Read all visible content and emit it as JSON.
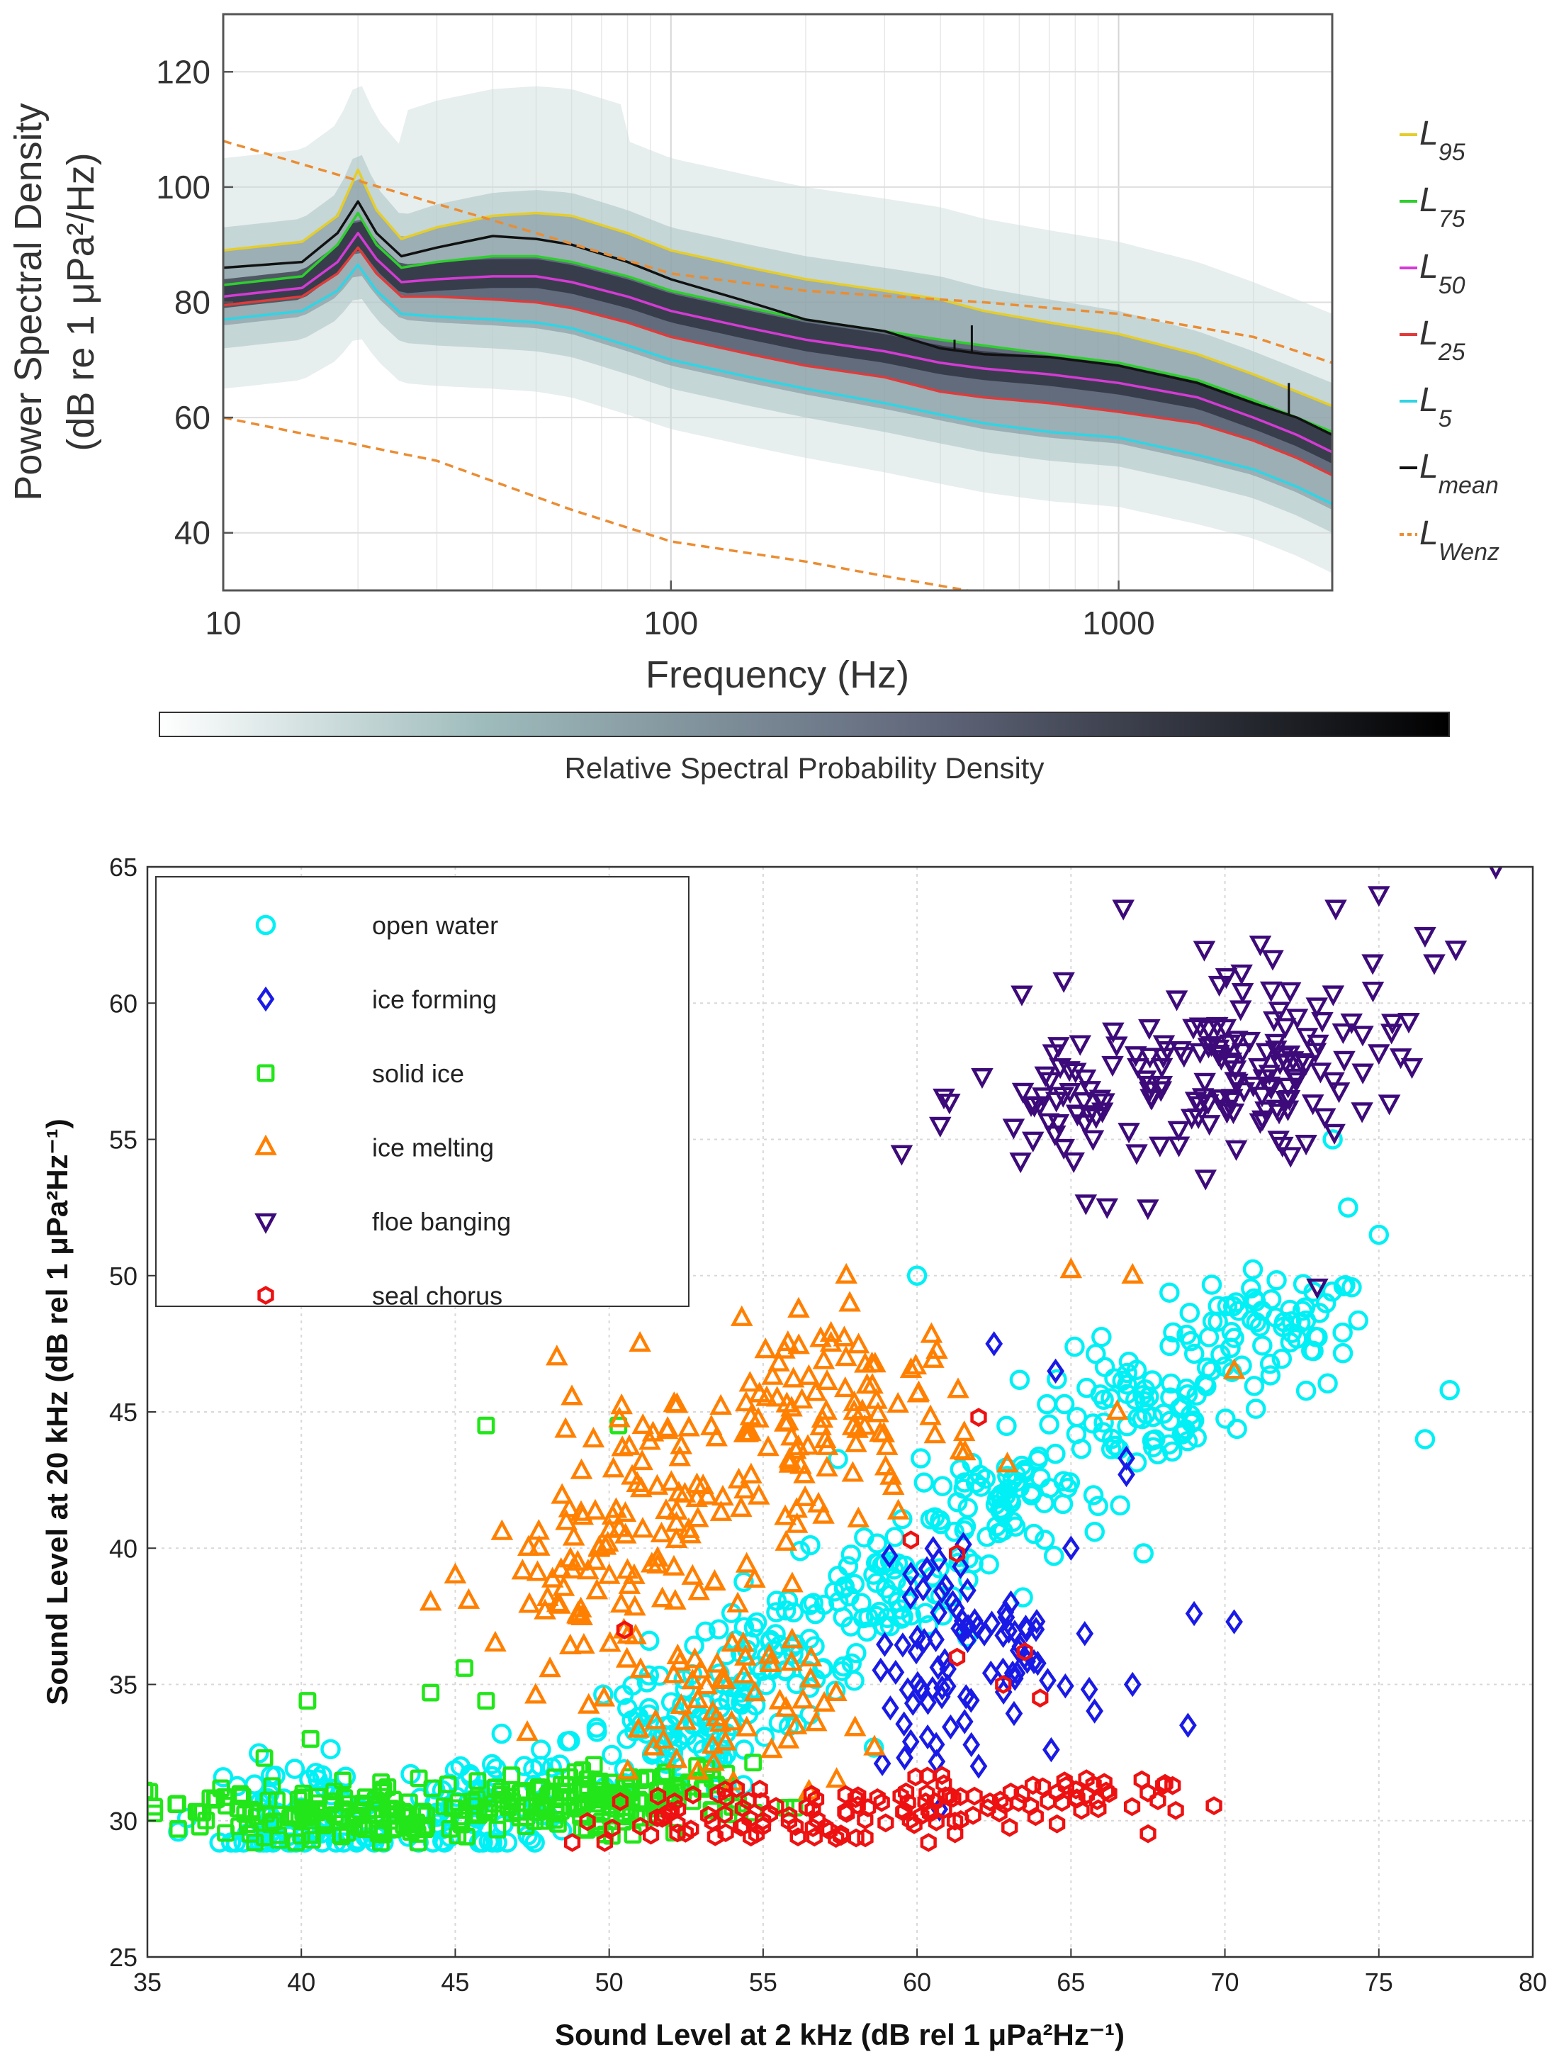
{
  "colors": {
    "L95": "#e5cd2b",
    "L75": "#2ecf2e",
    "L50": "#d43bd4",
    "L25": "#e03a3a",
    "L5": "#2fd5e5",
    "Lmean": "#111111",
    "LWenz": "#ea8d33",
    "open_water": "#00f0f5",
    "ice_forming": "#1a1ae6",
    "solid_ice": "#22e61a",
    "ice_melting": "#ff8000",
    "floe_banging": "#3d0a7a",
    "seal_chorus": "#ee1111"
  },
  "chart_data": [
    {
      "type": "line",
      "title": "",
      "xlabel": "Frequency (Hz)",
      "ylabel_line1": "Power Spectral Density",
      "ylabel_line2": "(dB re 1 μPa²/Hz)",
      "xscale": "log",
      "xlim": [
        10,
        3000
      ],
      "ylim": [
        30,
        130
      ],
      "xticks": [
        10,
        100,
        1000
      ],
      "xtick_labels": [
        "10",
        "100",
        "1000"
      ],
      "yticks": [
        40,
        60,
        80,
        100,
        120
      ],
      "ytick_labels": [
        "40",
        "60",
        "80",
        "100",
        "120"
      ],
      "grid": true,
      "legend_position": "outside-right",
      "x": [
        10,
        15,
        18,
        20,
        22,
        25,
        30,
        40,
        50,
        60,
        80,
        100,
        150,
        200,
        300,
        400,
        500,
        700,
        1000,
        1500,
        2000,
        2500,
        3000
      ],
      "series": [
        {
          "name": "L95",
          "label_main": "L",
          "label_sub": "95",
          "values": [
            89,
            90.5,
            95,
            103,
            96,
            91,
            93,
            95,
            95.5,
            95,
            92,
            89,
            86,
            84,
            82,
            80.5,
            78.5,
            76.5,
            74.5,
            71,
            67.5,
            64.5,
            62
          ]
        },
        {
          "name": "L75",
          "label_main": "L",
          "label_sub": "75",
          "values": [
            83,
            84.5,
            90,
            95.5,
            90,
            86,
            87,
            88,
            88,
            87,
            84.5,
            82,
            79,
            77,
            75,
            73.5,
            72.5,
            71,
            69.5,
            66.5,
            63,
            60,
            57.5
          ]
        },
        {
          "name": "L50",
          "label_main": "L",
          "label_sub": "50",
          "values": [
            81,
            82.5,
            87,
            92,
            87.5,
            83.5,
            84,
            84.5,
            84.5,
            83.5,
            81,
            78.5,
            75.5,
            73.5,
            71.5,
            69.5,
            68.5,
            67.5,
            66,
            63.5,
            60,
            57,
            54
          ]
        },
        {
          "name": "L25",
          "label_main": "L",
          "label_sub": "25",
          "values": [
            79.5,
            81,
            85,
            89.5,
            85,
            81,
            81,
            80.5,
            80,
            79,
            76.5,
            74,
            71,
            69,
            67,
            64.5,
            63.5,
            62.5,
            61,
            59,
            56,
            53,
            50
          ]
        },
        {
          "name": "L5",
          "label_main": "L",
          "label_sub": "5",
          "values": [
            77,
            78.5,
            82,
            86.5,
            82,
            78,
            77.5,
            77,
            76.5,
            75.5,
            72.5,
            70,
            67,
            65,
            62.5,
            60.5,
            59,
            57.5,
            56.5,
            53.5,
            51,
            48,
            45
          ]
        },
        {
          "name": "Lmean",
          "label_main": "L",
          "label_sub": "mean",
          "values": [
            86,
            87,
            92,
            97.5,
            92,
            88,
            89.5,
            91.5,
            91,
            90,
            87,
            84,
            80,
            77,
            75,
            72,
            71,
            70.5,
            69,
            66,
            62.5,
            60,
            57
          ]
        },
        {
          "name": "LWenz",
          "label_main": "L",
          "label_sub": "Wenz",
          "dashed": true,
          "upper_x": [
            10,
            50,
            100,
            200,
            500,
            1000,
            2000,
            3000
          ],
          "upper_values": [
            108,
            92,
            85,
            82,
            80,
            78,
            74,
            69.5
          ],
          "lower_x": [
            10,
            30,
            60,
            100,
            200,
            300,
            500
          ],
          "lower_values": [
            60,
            52.5,
            44,
            38.5,
            35,
            32.5,
            29.5
          ]
        }
      ],
      "colorbar": {
        "label": "Relative Spectral Probability Density",
        "colors": [
          "#ffffff",
          "#9fbcbc",
          "#60667a",
          "#000000"
        ]
      }
    },
    {
      "type": "scatter",
      "title": "",
      "xlabel": "Sound Level at 2 kHz (dB rel 1 μPa²Hz⁻¹)",
      "ylabel": "Sound Level at 20 kHz (dB rel 1 μPa²Hz⁻¹)",
      "xlim": [
        35,
        80
      ],
      "ylim": [
        25,
        65
      ],
      "xticks": [
        35,
        40,
        45,
        50,
        55,
        60,
        65,
        70,
        75,
        80
      ],
      "xtick_labels": [
        "35",
        "40",
        "45",
        "50",
        "55",
        "60",
        "65",
        "70",
        "75",
        "80"
      ],
      "yticks": [
        25,
        30,
        35,
        40,
        45,
        50,
        55,
        60,
        65
      ],
      "ytick_labels": [
        "25",
        "30",
        "35",
        "40",
        "45",
        "50",
        "55",
        "60",
        "65"
      ],
      "grid": true,
      "legend_position": "top-left",
      "series": [
        {
          "name": "open water",
          "marker": "circle",
          "clusters": [
            [
              71.5,
              48
            ],
            [
              67,
              45
            ],
            [
              63,
              42
            ],
            [
              59,
              38.5
            ],
            [
              55,
              35.5
            ],
            [
              52,
              33
            ],
            [
              46,
              30.5
            ],
            [
              40,
              30
            ]
          ],
          "points": [
            [
              73.5,
              55
            ],
            [
              74,
              52.5
            ],
            [
              60,
              50
            ],
            [
              75,
              51.5
            ],
            [
              76.5,
              44
            ],
            [
              77.3,
              45.8
            ],
            [
              36,
              29.6
            ]
          ]
        },
        {
          "name": "ice forming",
          "marker": "diamond",
          "clusters": [
            [
              60,
              34
            ],
            [
              63.5,
              35.5
            ],
            [
              61,
              38
            ]
          ],
          "points": [
            [
              70.3,
              37.3
            ],
            [
              69,
              37.6
            ],
            [
              68.8,
              33.5
            ],
            [
              66.8,
              42.7
            ],
            [
              66.8,
              43.3
            ],
            [
              64.5,
              46.5
            ],
            [
              62.5,
              47.5
            ],
            [
              65,
              40
            ],
            [
              67,
              35
            ],
            [
              62,
              32
            ]
          ]
        },
        {
          "name": "solid ice",
          "marker": "square",
          "clusters": [
            [
              43,
              30.2
            ],
            [
              47.5,
              30.5
            ],
            [
              39.5,
              30.3
            ],
            [
              51,
              31
            ]
          ],
          "points": [
            [
              46,
              44.5
            ],
            [
              40.2,
              34.4
            ],
            [
              45.3,
              35.6
            ],
            [
              44.2,
              34.7
            ],
            [
              46,
              34.4
            ],
            [
              40.3,
              33
            ],
            [
              50.3,
              44.5
            ],
            [
              38.8,
              32.3
            ],
            [
              36,
              29.7
            ]
          ]
        },
        {
          "name": "ice melting",
          "marker": "triangle-up",
          "clusters": [
            [
              55.5,
              44.5
            ],
            [
              51.5,
              41.5
            ],
            [
              58.5,
              45
            ],
            [
              49.5,
              38.5
            ],
            [
              54,
              34
            ]
          ],
          "points": [
            [
              45,
              39
            ],
            [
              46.3,
              36.5
            ],
            [
              44.2,
              38
            ],
            [
              51,
              47.5
            ],
            [
              49,
              37.5
            ],
            [
              48.3,
              47
            ],
            [
              65,
              50.2
            ],
            [
              70.3,
              46.5
            ],
            [
              67,
              50
            ],
            [
              66.5,
              45
            ],
            [
              57.7,
              50
            ]
          ]
        },
        {
          "name": "floe banging",
          "marker": "triangle-down",
          "clusters": [
            [
              65.5,
              56.5
            ],
            [
              70,
              57
            ],
            [
              72,
              58
            ]
          ],
          "points": [
            [
              78.8,
              65
            ],
            [
              75,
              64
            ],
            [
              73.6,
              63.5
            ],
            [
              66.7,
              63.5
            ],
            [
              76.5,
              62.5
            ],
            [
              74.8,
              61.5
            ],
            [
              77.5,
              62
            ],
            [
              76.8,
              61.5
            ],
            [
              59.5,
              54.5
            ],
            [
              73,
              49.6
            ],
            [
              75,
              58.2
            ],
            [
              71.5,
              60.5
            ]
          ]
        },
        {
          "name": "seal chorus",
          "marker": "hexagon",
          "clusters": [
            [
              57,
              30.2
            ],
            [
              61,
              30.8
            ],
            [
              64.5,
              30.7
            ],
            [
              52.5,
              30
            ]
          ],
          "points": [
            [
              62,
              44.8
            ],
            [
              59.8,
              40.3
            ],
            [
              61.3,
              39.8
            ],
            [
              61.3,
              36
            ],
            [
              62.8,
              35
            ],
            [
              63.5,
              36.2
            ],
            [
              64,
              34.5
            ],
            [
              68,
              31.3
            ],
            [
              67.3,
              31.5
            ],
            [
              50.5,
              37
            ],
            [
              48.8,
              29.2
            ]
          ]
        }
      ]
    }
  ]
}
